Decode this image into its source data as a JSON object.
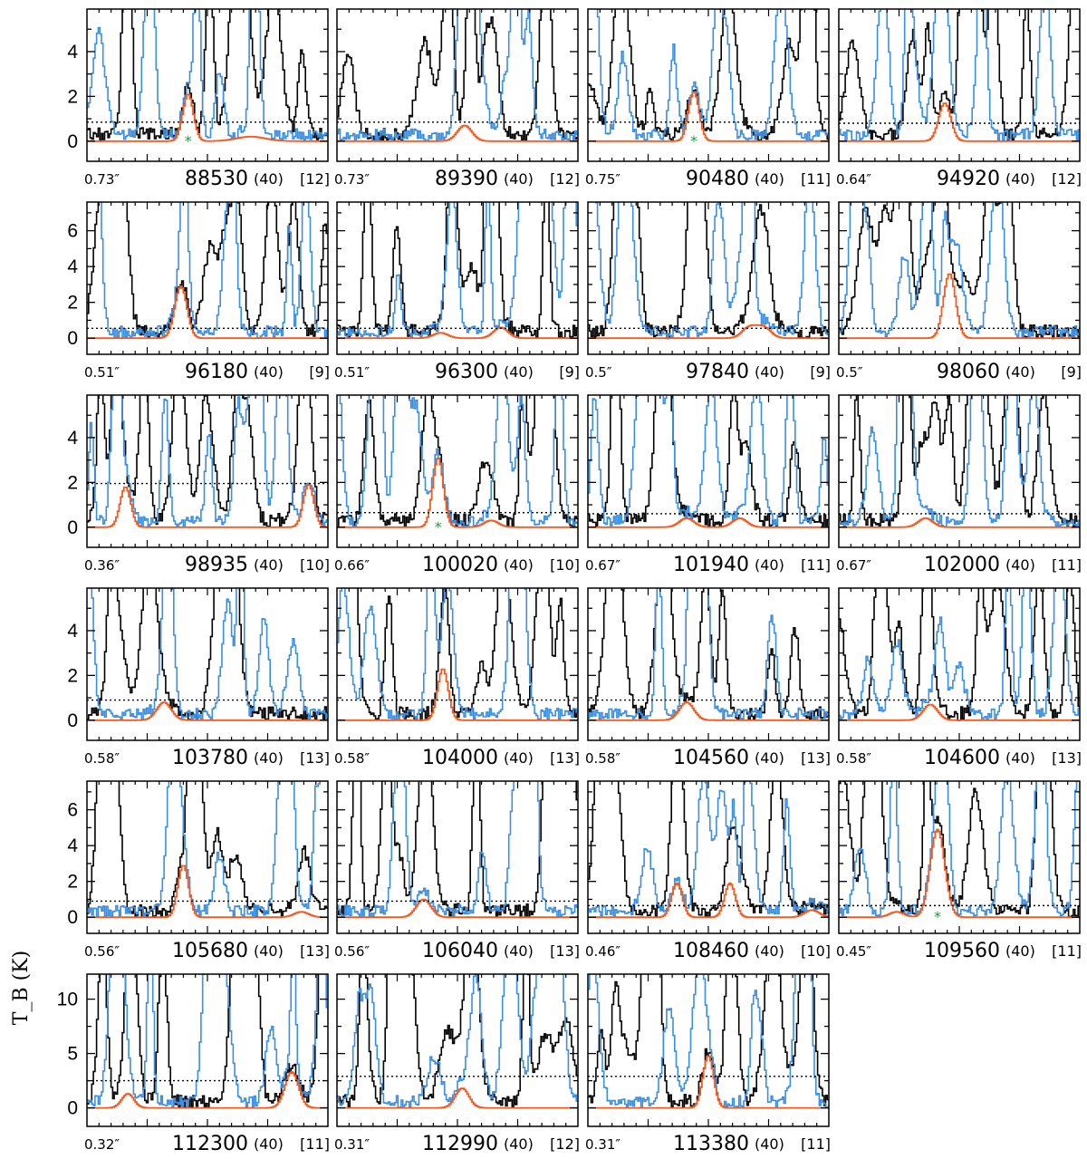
{
  "chart_data": {
    "type": "line",
    "ylabel": "T_B (K)",
    "xlabel": "",
    "colors": {
      "observed": "#000000",
      "model_total": "#3b8fe0",
      "model_molecule": "#f25a22",
      "threshold": "#000000",
      "blend_marker": "#1a9c3a"
    },
    "row_ylims": [
      [
        -0.9,
        5.9
      ],
      [
        -0.9,
        7.6
      ],
      [
        -0.9,
        5.9
      ],
      [
        -0.9,
        5.9
      ],
      [
        -0.9,
        7.6
      ],
      [
        -1.7,
        12.3
      ]
    ],
    "row_yticks": [
      [
        0,
        2,
        4
      ],
      [
        0,
        2,
        4,
        6
      ],
      [
        0,
        2,
        4
      ],
      [
        0,
        2,
        4
      ],
      [
        0,
        2,
        4,
        6
      ],
      [
        0,
        5,
        10
      ]
    ],
    "panels": [
      {
        "beam": "0.73″",
        "freq": "88530",
        "width": "(40)",
        "index": "[12]",
        "threshold": 0.85,
        "star": true,
        "mol_peaks": [
          [
            0.42,
            2.1,
            0.022
          ],
          [
            0.68,
            0.2,
            0.06
          ]
        ],
        "mol_peak_values": [
          2.1
        ]
      },
      {
        "beam": "0.73″",
        "freq": "89390",
        "width": "(40)",
        "index": "[12]",
        "threshold": 0.85,
        "star": false,
        "mol_peaks": [
          [
            0.53,
            0.7,
            0.03
          ]
        ],
        "mol_peak_values": [
          0.7
        ]
      },
      {
        "beam": "0.75″",
        "freq": "90480",
        "width": "(40)",
        "index": "[11]",
        "threshold": 0.85,
        "star": true,
        "mol_peaks": [
          [
            0.44,
            2.2,
            0.022
          ]
        ],
        "mol_peak_values": [
          2.2
        ]
      },
      {
        "beam": "0.64″",
        "freq": "94920",
        "width": "(40)",
        "index": "[12]",
        "threshold": 0.8,
        "star": false,
        "mol_peaks": [
          [
            0.44,
            1.7,
            0.025
          ]
        ],
        "mol_peak_values": [
          1.7
        ]
      },
      {
        "beam": "0.51″",
        "freq": "96180",
        "width": "(40)",
        "index": "[9]",
        "threshold": 0.55,
        "star": false,
        "mol_peaks": [
          [
            0.39,
            2.9,
            0.025
          ]
        ],
        "mol_peak_values": [
          2.9
        ]
      },
      {
        "beam": "0.51″",
        "freq": "96300",
        "width": "(40)",
        "index": "[9]",
        "threshold": 0.55,
        "star": false,
        "mol_peaks": [
          [
            0.43,
            0.3,
            0.03
          ],
          [
            0.68,
            0.6,
            0.03
          ]
        ],
        "mol_peak_values": [
          0.3,
          0.6
        ]
      },
      {
        "beam": "0.5″",
        "freq": "97840",
        "width": "(40)",
        "index": "[9]",
        "threshold": 0.55,
        "star": false,
        "mol_peaks": [
          [
            0.67,
            0.6,
            0.03
          ],
          [
            0.73,
            0.6,
            0.03
          ]
        ],
        "mol_peak_values": [
          0.6,
          0.6
        ]
      },
      {
        "beam": "0.5″",
        "freq": "98060",
        "width": "(40)",
        "index": "[9]",
        "threshold": 0.55,
        "star": false,
        "mol_peaks": [
          [
            0.46,
            3.6,
            0.025
          ]
        ],
        "mol_peak_values": [
          3.6
        ]
      },
      {
        "beam": "0.36″",
        "freq": "98935",
        "width": "(40)",
        "index": "[10]",
        "threshold": 1.95,
        "star": false,
        "mol_peaks": [
          [
            0.16,
            1.8,
            0.022
          ],
          [
            0.92,
            1.9,
            0.022
          ]
        ],
        "mol_peak_values": [
          1.8,
          1.9
        ]
      },
      {
        "beam": "0.66″",
        "freq": "100020",
        "width": "(40)",
        "index": "[10]",
        "threshold": 0.65,
        "star": true,
        "mol_peaks": [
          [
            0.42,
            3.1,
            0.022
          ],
          [
            0.64,
            0.3,
            0.03
          ]
        ],
        "mol_peak_values": [
          3.1,
          0.3
        ]
      },
      {
        "beam": "0.67″",
        "freq": "101940",
        "width": "(40)",
        "index": "[11]",
        "threshold": 0.6,
        "star": false,
        "mol_peaks": [
          [
            0.41,
            0.4,
            0.03
          ],
          [
            0.63,
            0.4,
            0.03
          ]
        ],
        "mol_peak_values": [
          0.4,
          0.4
        ]
      },
      {
        "beam": "0.67″",
        "freq": "102000",
        "width": "(40)",
        "index": "[11]",
        "threshold": 0.6,
        "star": false,
        "mol_peaks": [
          [
            0.36,
            0.4,
            0.03
          ]
        ],
        "mol_peak_values": [
          0.4
        ]
      },
      {
        "beam": "0.58″",
        "freq": "103780",
        "width": "(40)",
        "index": "[13]",
        "threshold": 0.9,
        "star": false,
        "mol_peaks": [
          [
            0.32,
            0.8,
            0.03
          ]
        ],
        "mol_peak_values": [
          0.8
        ]
      },
      {
        "beam": "0.58″",
        "freq": "104000",
        "width": "(40)",
        "index": "[13]",
        "threshold": 0.9,
        "star": false,
        "mol_peaks": [
          [
            0.44,
            2.3,
            0.022
          ]
        ],
        "mol_peak_values": [
          2.3
        ]
      },
      {
        "beam": "0.58″",
        "freq": "104560",
        "width": "(40)",
        "index": "[13]",
        "threshold": 0.9,
        "star": false,
        "mol_peaks": [
          [
            0.41,
            0.8,
            0.03
          ]
        ],
        "mol_peak_values": [
          0.8
        ]
      },
      {
        "beam": "0.58″",
        "freq": "104600",
        "width": "(40)",
        "index": "[13]",
        "threshold": 0.9,
        "star": false,
        "mol_peaks": [
          [
            0.38,
            0.7,
            0.03
          ]
        ],
        "mol_peak_values": [
          0.7
        ]
      },
      {
        "beam": "0.56″",
        "freq": "105680",
        "width": "(40)",
        "index": "[13]",
        "threshold": 0.9,
        "star": false,
        "mol_peaks": [
          [
            0.4,
            2.9,
            0.022
          ],
          [
            0.89,
            0.3,
            0.03
          ]
        ],
        "mol_peak_values": [
          2.9,
          0.3
        ]
      },
      {
        "beam": "0.56″",
        "freq": "106040",
        "width": "(40)",
        "index": "[13]",
        "threshold": 0.9,
        "star": false,
        "mol_peaks": [
          [
            0.36,
            1.0,
            0.03
          ]
        ],
        "mol_peak_values": [
          1.0
        ]
      },
      {
        "beam": "0.46″",
        "freq": "108460",
        "width": "(40)",
        "index": "[10]",
        "threshold": 0.65,
        "star": false,
        "mol_peaks": [
          [
            0.37,
            1.9,
            0.022
          ],
          [
            0.59,
            1.9,
            0.022
          ],
          [
            0.93,
            0.4,
            0.03
          ]
        ],
        "mol_peak_values": [
          1.9,
          1.9,
          0.4
        ]
      },
      {
        "beam": "0.45″",
        "freq": "109560",
        "width": "(40)",
        "index": "[11]",
        "threshold": 0.65,
        "star": true,
        "mol_peaks": [
          [
            0.41,
            4.9,
            0.03
          ],
          [
            0.24,
            0.3,
            0.03
          ]
        ],
        "mol_peak_values": [
          4.9,
          0.3
        ]
      },
      {
        "beam": "0.32″",
        "freq": "112300",
        "width": "(40)",
        "index": "[11]",
        "threshold": 2.5,
        "star": false,
        "mol_peaks": [
          [
            0.17,
            1.3,
            0.025
          ],
          [
            0.85,
            3.3,
            0.028
          ]
        ],
        "mol_peak_values": [
          1.3,
          3.3
        ]
      },
      {
        "beam": "0.31″",
        "freq": "112990",
        "width": "(40)",
        "index": "[12]",
        "threshold": 2.9,
        "star": false,
        "mol_peaks": [
          [
            0.52,
            1.8,
            0.028
          ]
        ],
        "mol_peak_values": [
          1.8
        ]
      },
      {
        "beam": "0.31″",
        "freq": "113380",
        "width": "(40)",
        "index": "[11]",
        "threshold": 2.9,
        "star": false,
        "mol_peaks": [
          [
            0.5,
            4.8,
            0.022
          ]
        ],
        "mol_peak_values": [
          4.8
        ]
      }
    ]
  }
}
